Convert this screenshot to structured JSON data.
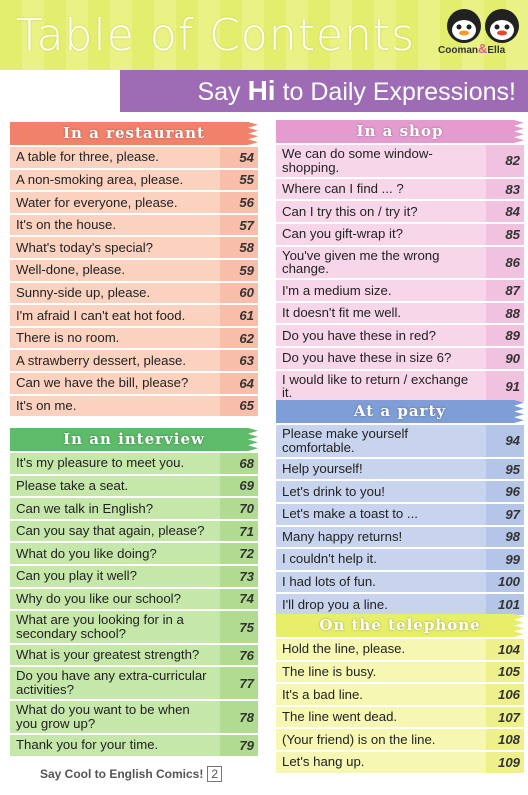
{
  "header": {
    "title": "Table of Contents",
    "subtitle": [
      "Say",
      "Hi",
      "to Daily Expressions!"
    ],
    "logo": [
      "Cooman",
      "&",
      "Ella"
    ]
  },
  "sections": [
    {
      "title": "In a restaurant",
      "entries": [
        [
          "A table for three, please.",
          54
        ],
        [
          "A non-smoking area, please.",
          55
        ],
        [
          "Water for everyone, please.",
          56
        ],
        [
          "It's on the house.",
          57
        ],
        [
          "What's today's special?",
          58
        ],
        [
          "Well-done, please.",
          59
        ],
        [
          "Sunny-side up, please.",
          60
        ],
        [
          "I'm afraid I can't eat hot food.",
          61
        ],
        [
          "There is no room.",
          62
        ],
        [
          "A strawberry dessert, please.",
          63
        ],
        [
          "Can we have the bill, please?",
          64
        ],
        [
          "It's on me.",
          65
        ]
      ]
    },
    {
      "title": "In an interview",
      "entries": [
        [
          "It's my pleasure to meet you.",
          68
        ],
        [
          "Please take a seat.",
          69
        ],
        [
          "Can we talk in English?",
          70
        ],
        [
          "Can you say that again, please?",
          71
        ],
        [
          "What do you like doing?",
          72
        ],
        [
          "Can you play it well?",
          73
        ],
        [
          "Why do you like our school?",
          74
        ],
        [
          "What are you looking for in a secondary school?",
          75
        ],
        [
          "What is your greatest strength?",
          76
        ],
        [
          "Do you have any extra-curricular activities?",
          77
        ],
        [
          "What do you want to be when you grow up?",
          78
        ],
        [
          "Thank you for your time.",
          79
        ]
      ]
    },
    {
      "title": "In a shop",
      "entries": [
        [
          "We can do some window-shopping.",
          82
        ],
        [
          "Where can I find ... ?",
          83
        ],
        [
          "Can I try this on / try it?",
          84
        ],
        [
          "Can you gift-wrap it?",
          85
        ],
        [
          "You've given me the wrong change.",
          86
        ],
        [
          "I'm a medium size.",
          87
        ],
        [
          "It doesn't fit me well.",
          88
        ],
        [
          "Do you have these in red?",
          89
        ],
        [
          "Do you have these in size 6?",
          90
        ],
        [
          "I would like to return / exchange it.",
          91
        ]
      ]
    },
    {
      "title": "At a party",
      "entries": [
        [
          "Please make yourself comfortable.",
          94
        ],
        [
          "Help yourself!",
          95
        ],
        [
          "Let's drink to you!",
          96
        ],
        [
          "Let's make a toast to ...",
          97
        ],
        [
          "Many happy returns!",
          98
        ],
        [
          "I couldn't help it.",
          99
        ],
        [
          "I had lots of fun.",
          100
        ],
        [
          "I'll drop you a line.",
          101
        ]
      ]
    },
    {
      "title": "On the telephone",
      "entries": [
        [
          "Hold the line, please.",
          104
        ],
        [
          "The line is busy.",
          105
        ],
        [
          "It's a bad line.",
          106
        ],
        [
          "The line went dead.",
          107
        ],
        [
          "(Your friend) is on the line.",
          108
        ],
        [
          "Let's hang up.",
          109
        ]
      ]
    }
  ],
  "footer": {
    "text": "Say Cool to English Comics!",
    "page": 2
  }
}
